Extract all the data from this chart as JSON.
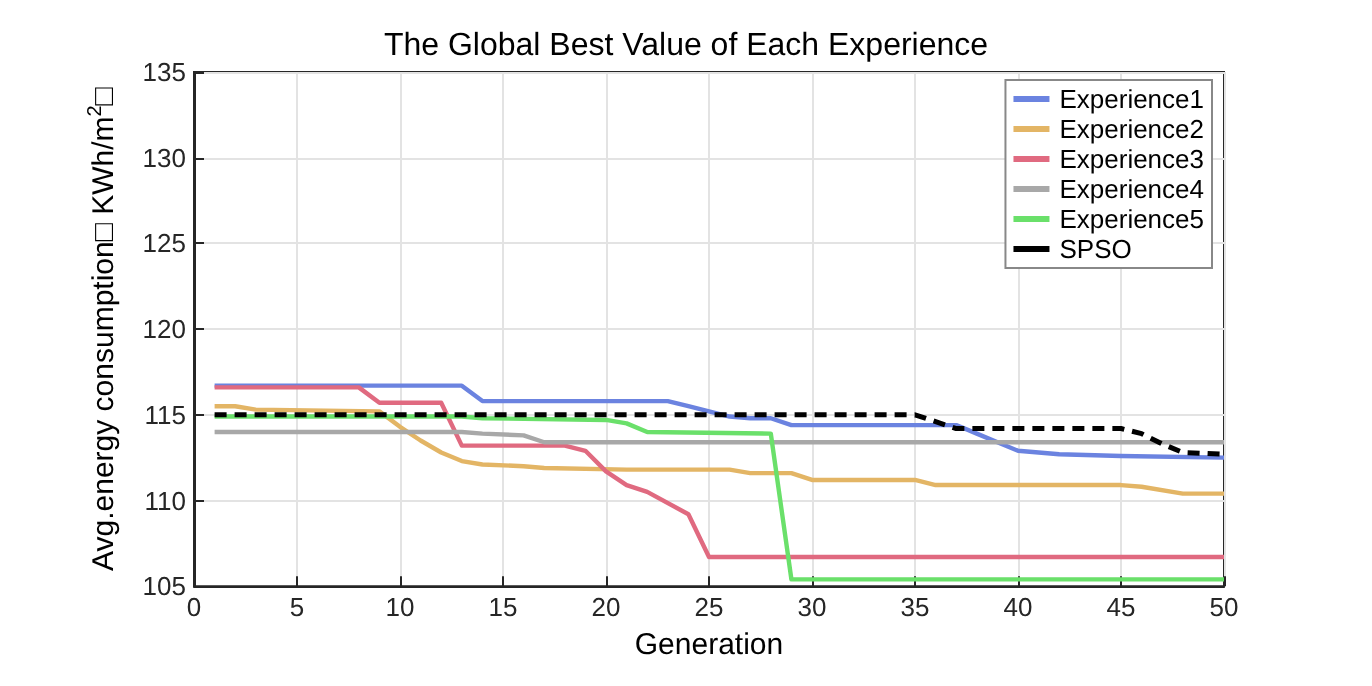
{
  "chart_data": {
    "type": "line",
    "title": "The Global Best Value of Each Experience",
    "xlabel": "Generation",
    "ylabel": "Avg.energy consumption□ KWh/m$^{2}$□",
    "xlim": [
      0,
      50
    ],
    "xticks": [
      0,
      5,
      10,
      15,
      20,
      25,
      30,
      35,
      40,
      45,
      50
    ],
    "ylim": [
      105,
      135
    ],
    "yticks": [
      105,
      110,
      115,
      120,
      125,
      130,
      135
    ],
    "grid": true,
    "legend": "top right",
    "marker": "none",
    "series": [
      {
        "name": "Experience1",
        "color": "#6b83e0",
        "x": [
          1,
          13,
          14,
          23,
          24,
          25,
          26,
          27,
          28,
          29,
          35,
          37,
          38,
          40,
          42,
          45,
          50
        ],
        "values": [
          116.7,
          116.7,
          115.8,
          115.8,
          115.5,
          115.2,
          114.9,
          114.8,
          114.8,
          114.4,
          114.4,
          114.4,
          113.9,
          112.9,
          112.7,
          112.6,
          112.5
        ]
      },
      {
        "name": "Experience2",
        "color": "#e3b565",
        "x": [
          1,
          2,
          3,
          9,
          10,
          11,
          12,
          13,
          14,
          16,
          17,
          21,
          26,
          27,
          29,
          30,
          35,
          36,
          45,
          46,
          48,
          50
        ],
        "values": [
          115.5,
          115.5,
          115.3,
          115.2,
          114.3,
          113.5,
          112.8,
          112.3,
          112.1,
          112.0,
          111.9,
          111.8,
          111.8,
          111.6,
          111.6,
          111.2,
          111.2,
          110.9,
          110.9,
          110.8,
          110.4,
          110.4
        ]
      },
      {
        "name": "Experience3",
        "color": "#e06a80",
        "x": [
          1,
          8,
          9,
          12,
          13,
          18,
          19,
          20,
          21,
          22,
          24,
          25,
          50
        ],
        "values": [
          116.6,
          116.6,
          115.7,
          115.7,
          113.2,
          113.2,
          112.9,
          111.7,
          110.9,
          110.5,
          109.2,
          106.7,
          106.7
        ]
      },
      {
        "name": "Experience4",
        "color": "#a8a8a8",
        "x": [
          1,
          13,
          14,
          16,
          17,
          50
        ],
        "values": [
          114.0,
          114.0,
          113.9,
          113.8,
          113.4,
          113.4
        ]
      },
      {
        "name": "Experience5",
        "color": "#6ae06a",
        "x": [
          1,
          13,
          14,
          20,
          21,
          22,
          28,
          29,
          50
        ],
        "values": [
          114.9,
          114.9,
          114.8,
          114.7,
          114.5,
          114.0,
          113.9,
          105.4,
          105.4
        ]
      },
      {
        "name": "SPSO",
        "color": "#000000",
        "line_style": "dashed",
        "x": [
          1,
          35,
          36,
          37,
          45,
          46,
          47,
          48,
          50
        ],
        "values": [
          115.0,
          115.0,
          114.6,
          114.2,
          114.2,
          113.9,
          113.3,
          112.8,
          112.7
        ]
      }
    ]
  }
}
